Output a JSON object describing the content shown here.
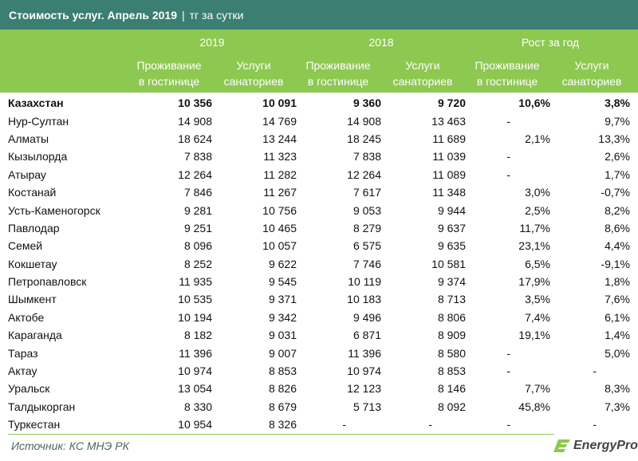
{
  "title": {
    "main": "Стоимость услуг. Апрель 2019",
    "separator": "|",
    "unit": "тг за сутки"
  },
  "header": {
    "groups": [
      "2019",
      "2018",
      "Рост за год"
    ],
    "sub": [
      [
        "Проживание",
        "в гостинице"
      ],
      [
        "Услуги",
        "санаториев"
      ],
      [
        "Проживание",
        "в гостинице"
      ],
      [
        "Услуги",
        "санаториев"
      ],
      [
        "Проживание",
        "в гостинице"
      ],
      [
        "Услуги",
        "санаториев"
      ]
    ]
  },
  "rows": [
    [
      "Казахстан",
      "10 356",
      "10 091",
      "9 360",
      "9 720",
      "10,6%",
      "3,8%"
    ],
    [
      "Нур-Султан",
      "14 908",
      "14 769",
      "14 908",
      "13 463",
      "-",
      "9,7%"
    ],
    [
      "Алматы",
      "18 624",
      "13 244",
      "18 245",
      "11 689",
      "2,1%",
      "13,3%"
    ],
    [
      "Кызылорда",
      "7 838",
      "11 323",
      "7 838",
      "11 039",
      "-",
      "2,6%"
    ],
    [
      "Атырау",
      "12 264",
      "11 282",
      "12 264",
      "11 089",
      "-",
      "1,7%"
    ],
    [
      "Костанай",
      "7 846",
      "11 267",
      "7 617",
      "11 348",
      "3,0%",
      "-0,7%"
    ],
    [
      "Усть-Каменогорск",
      "9 281",
      "10 756",
      "9 053",
      "9 944",
      "2,5%",
      "8,2%"
    ],
    [
      "Павлодар",
      "9 251",
      "10 465",
      "8 279",
      "9 637",
      "11,7%",
      "8,6%"
    ],
    [
      "Семей",
      "8 096",
      "10 057",
      "6 575",
      "9 635",
      "23,1%",
      "4,4%"
    ],
    [
      "Кокшетау",
      "8 252",
      "9 622",
      "7 746",
      "10 581",
      "6,5%",
      "-9,1%"
    ],
    [
      "Петропавловск",
      "11 935",
      "9 545",
      "10 119",
      "9 374",
      "17,9%",
      "1,8%"
    ],
    [
      "Шымкент",
      "10 535",
      "9 371",
      "10 183",
      "8 713",
      "3,5%",
      "7,6%"
    ],
    [
      "Актобе",
      "10 194",
      "9 342",
      "9 496",
      "8 806",
      "7,4%",
      "6,1%"
    ],
    [
      "Караганда",
      "8 182",
      "9 031",
      "6 871",
      "8 909",
      "19,1%",
      "1,4%"
    ],
    [
      "Тараз",
      "11 396",
      "9 007",
      "11 396",
      "8 580",
      "-",
      "5,0%"
    ],
    [
      "Актау",
      "10 974",
      "8 853",
      "10 974",
      "8 853",
      "-",
      "-"
    ],
    [
      "Уральск",
      "13 054",
      "8 826",
      "12 123",
      "8 146",
      "7,7%",
      "8,3%"
    ],
    [
      "Талдыкорган",
      "8 330",
      "8 679",
      "5 713",
      "8 092",
      "45,8%",
      "7,3%"
    ],
    [
      "Туркестан",
      "10 954",
      "8 326",
      "-",
      "-",
      "-",
      "-"
    ]
  ],
  "footer": {
    "source": "Источник: КС МНЭ РК",
    "logo": "EnergyProm"
  },
  "colors": {
    "title_bg": "#3a7f71",
    "header_bg": "#8dc850",
    "text": "#111111"
  }
}
